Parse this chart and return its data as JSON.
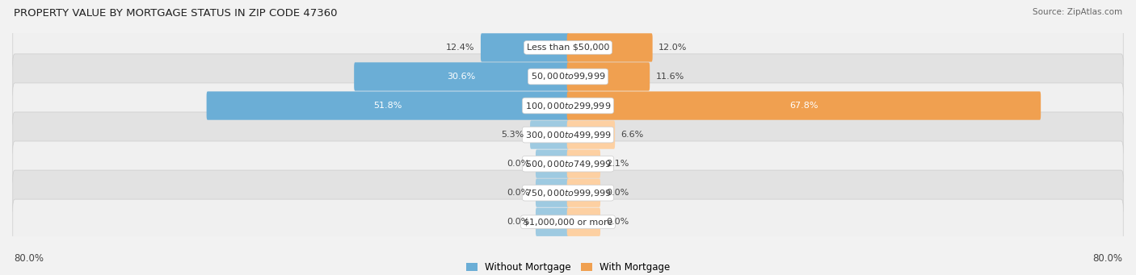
{
  "title": "PROPERTY VALUE BY MORTGAGE STATUS IN ZIP CODE 47360",
  "source": "Source: ZipAtlas.com",
  "categories": [
    "Less than $50,000",
    "$50,000 to $99,999",
    "$100,000 to $299,999",
    "$300,000 to $499,999",
    "$500,000 to $749,999",
    "$750,000 to $999,999",
    "$1,000,000 or more"
  ],
  "without_mortgage": [
    12.4,
    30.6,
    51.8,
    5.3,
    0.0,
    0.0,
    0.0
  ],
  "with_mortgage": [
    12.0,
    11.6,
    67.8,
    6.6,
    2.1,
    0.0,
    0.0
  ],
  "color_without_strong": "#6baed6",
  "color_without_light": "#9ecae1",
  "color_with_strong": "#f0a050",
  "color_with_light": "#fdd0a2",
  "row_bg_light": "#f0f0f0",
  "row_bg_dark": "#e2e2e2",
  "axis_max": 80.0,
  "stub_min": 4.5,
  "title_fontsize": 9.5,
  "cat_fontsize": 8,
  "pct_fontsize": 8,
  "tick_fontsize": 8.5,
  "legend_fontsize": 8.5,
  "source_fontsize": 7.5
}
